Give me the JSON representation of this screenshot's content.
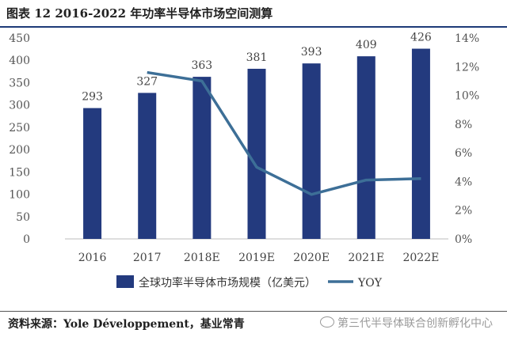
{
  "figure": {
    "title": "图表 12   2016-2022 年功率半导体市场空间测算",
    "source": "资料来源：Yole Développement，基业常青",
    "watermark": "第三代半导体联合创新孵化中心"
  },
  "chart_data": {
    "type": "bar",
    "categories": [
      "2016",
      "2017",
      "2018E",
      "2019E",
      "2020E",
      "2021E",
      "2022E"
    ],
    "series": [
      {
        "name": "全球功率半导体市场规模（亿美元）",
        "type": "bar",
        "axis": "left",
        "values": [
          293,
          327,
          363,
          381,
          393,
          409,
          426
        ],
        "labels": [
          "293",
          "327",
          "363",
          "381",
          "393",
          "409",
          "426"
        ],
        "color": "#233a7e"
      },
      {
        "name": "YOY",
        "type": "line",
        "axis": "right",
        "values": [
          null,
          11.6,
          11.0,
          5.0,
          3.1,
          4.1,
          4.2
        ],
        "color": "#3d6f97"
      }
    ],
    "y_left": {
      "min": 0,
      "max": 450,
      "ticks": [
        "0",
        "50",
        "100",
        "150",
        "200",
        "250",
        "300",
        "350",
        "400",
        "450"
      ]
    },
    "y_right": {
      "min": 0,
      "max": 14,
      "ticks": [
        "0%",
        "2%",
        "4%",
        "6%",
        "8%",
        "10%",
        "12%",
        "14%"
      ]
    },
    "grid": false,
    "legend": "bottom"
  }
}
